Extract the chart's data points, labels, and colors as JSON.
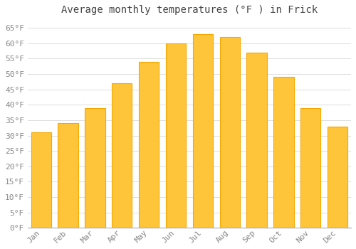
{
  "title": "Average monthly temperatures (°F ) in Frick",
  "months": [
    "Jan",
    "Feb",
    "Mar",
    "Apr",
    "May",
    "Jun",
    "Jul",
    "Aug",
    "Sep",
    "Oct",
    "Nov",
    "Dec"
  ],
  "values": [
    31,
    34,
    39,
    47,
    54,
    60,
    63,
    62,
    57,
    49,
    39,
    33
  ],
  "bar_color_main": "#FFC53A",
  "bar_color_edge": "#F5A800",
  "background_color": "#FFFFFF",
  "plot_bg_color": "#FFFFFF",
  "grid_color": "#DDDDDD",
  "ylim": [
    0,
    68
  ],
  "yticks": [
    0,
    5,
    10,
    15,
    20,
    25,
    30,
    35,
    40,
    45,
    50,
    55,
    60,
    65
  ],
  "title_fontsize": 10,
  "tick_fontsize": 8,
  "font_color": "#888888",
  "title_color": "#444444",
  "bar_width": 0.75
}
